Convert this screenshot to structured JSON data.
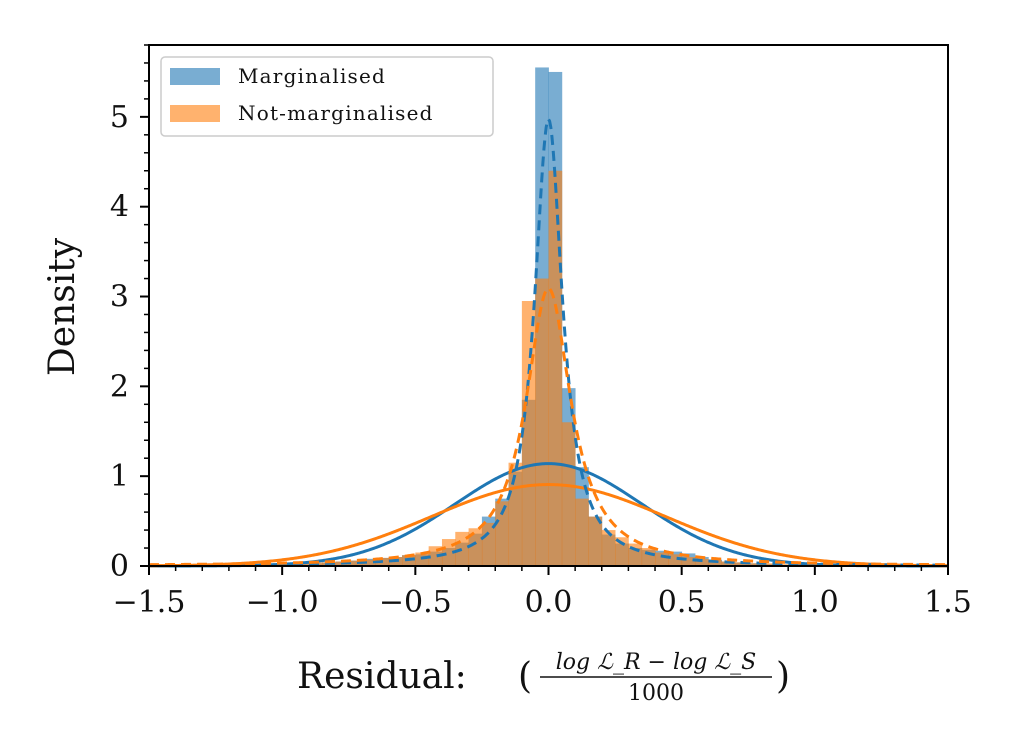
{
  "chart_data": {
    "type": "bar",
    "title": "",
    "xlabel_main": "Residual:",
    "xlabel_fraction": {
      "numerator": "log ℒ_R − log ℒ_S",
      "denominator": "1000"
    },
    "ylabel": "Density",
    "xlim": [
      -1.5,
      1.5
    ],
    "ylim": [
      0,
      5.8
    ],
    "xticks": [
      -1.5,
      -1.0,
      -0.5,
      0.0,
      0.5,
      1.0,
      1.5
    ],
    "xtick_labels": [
      "−1.5",
      "−1.0",
      "−0.5",
      "0.0",
      "0.5",
      "1.0",
      "1.5"
    ],
    "yticks": [
      0,
      1,
      2,
      3,
      4,
      5
    ],
    "ytick_labels": [
      "0",
      "1",
      "2",
      "3",
      "4",
      "5"
    ],
    "legend_position": "top-left",
    "bin_edges": [
      -1.5,
      -1.45,
      -1.4,
      -1.35,
      -1.3,
      -1.25,
      -1.2,
      -1.15,
      -1.1,
      -1.05,
      -1.0,
      -0.95,
      -0.9,
      -0.85,
      -0.8,
      -0.75,
      -0.7,
      -0.65,
      -0.6,
      -0.55,
      -0.5,
      -0.45,
      -0.4,
      -0.35,
      -0.3,
      -0.25,
      -0.2,
      -0.15,
      -0.1,
      -0.05,
      0.0,
      0.05,
      0.1,
      0.15,
      0.2,
      0.25,
      0.3,
      0.35,
      0.4,
      0.45,
      0.5,
      0.55,
      0.6,
      0.65,
      0.7,
      0.75,
      0.8,
      0.85,
      0.9,
      0.95,
      1.0,
      1.05,
      1.1,
      1.15,
      1.2,
      1.25,
      1.3,
      1.35,
      1.4,
      1.45,
      1.5
    ],
    "series": [
      {
        "name": "Marginalised",
        "kind": "histogram",
        "color": "#1f77b4",
        "values": [
          0.01,
          0.01,
          0.01,
          0.01,
          0.01,
          0.01,
          0.01,
          0.01,
          0.01,
          0.01,
          0.02,
          0.02,
          0.03,
          0.04,
          0.05,
          0.06,
          0.08,
          0.09,
          0.1,
          0.12,
          0.13,
          0.16,
          0.2,
          0.26,
          0.36,
          0.55,
          0.75,
          1.05,
          1.85,
          5.55,
          5.5,
          1.98,
          1.1,
          0.55,
          0.35,
          0.25,
          0.2,
          0.18,
          0.17,
          0.16,
          0.14,
          0.1,
          0.07,
          0.05,
          0.04,
          0.03,
          0.02,
          0.01,
          0.01,
          0.01,
          0.01,
          0.01,
          0.01,
          0.01,
          0.01,
          0.01,
          0.01,
          0.01,
          0.01,
          0.01
        ]
      },
      {
        "name": "Not-marginalised",
        "kind": "histogram",
        "color": "#ff7f0e",
        "values": [
          0.02,
          0.02,
          0.02,
          0.02,
          0.02,
          0.02,
          0.02,
          0.02,
          0.02,
          0.02,
          0.03,
          0.03,
          0.04,
          0.04,
          0.05,
          0.06,
          0.07,
          0.09,
          0.1,
          0.12,
          0.15,
          0.22,
          0.3,
          0.38,
          0.42,
          0.48,
          0.72,
          1.15,
          2.95,
          3.2,
          4.4,
          1.6,
          0.75,
          0.55,
          0.4,
          0.32,
          0.25,
          0.2,
          0.15,
          0.13,
          0.1,
          0.08,
          0.06,
          0.05,
          0.04,
          0.03,
          0.03,
          0.02,
          0.02,
          0.02,
          0.02,
          0.02,
          0.02,
          0.02,
          0.02,
          0.02,
          0.02,
          0.02,
          0.02,
          0.02
        ]
      }
    ],
    "fit_curves": [
      {
        "name": "Marginalised Gaussian fit",
        "series": "Marginalised",
        "dist": "normal",
        "loc": 0.0,
        "scale": 0.35,
        "style": "solid",
        "color": "#1f77b4"
      },
      {
        "name": "Not-marginalised Gaussian fit",
        "series": "Not-marginalised",
        "dist": "normal",
        "loc": 0.0,
        "scale": 0.44,
        "style": "solid",
        "color": "#ff7f0e"
      },
      {
        "name": "Marginalised Cauchy fit",
        "series": "Marginalised",
        "dist": "cauchy",
        "loc": 0.0,
        "scale": 0.064,
        "style": "dashed",
        "color": "#1f77b4"
      },
      {
        "name": "Not-marginalised Cauchy fit",
        "series": "Not-marginalised",
        "dist": "cauchy",
        "loc": 0.0,
        "scale": 0.103,
        "style": "dashed",
        "color": "#ff7f0e"
      }
    ]
  }
}
